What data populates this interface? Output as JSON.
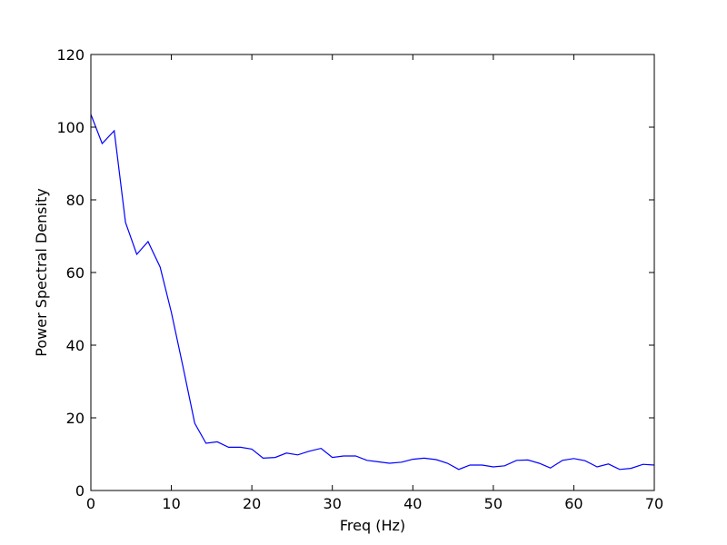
{
  "chart_data": {
    "type": "line",
    "xlabel": "Freq (Hz)",
    "ylabel": "Power Spectral Density",
    "xlim": [
      0,
      70
    ],
    "ylim": [
      0,
      120
    ],
    "xticks": [
      0,
      10,
      20,
      30,
      40,
      50,
      60,
      70
    ],
    "yticks": [
      0,
      20,
      40,
      60,
      80,
      100,
      120
    ],
    "grid": false,
    "series": [
      {
        "color": "#0000ff",
        "x": [
          0,
          1.4,
          2.9,
          4.3,
          5.7,
          7.1,
          8.6,
          10.0,
          11.4,
          12.9,
          14.3,
          15.7,
          17.1,
          18.6,
          20.0,
          21.4,
          22.9,
          24.3,
          25.7,
          27.1,
          28.6,
          30.0,
          31.4,
          32.9,
          34.3,
          35.7,
          37.1,
          38.6,
          40.0,
          41.4,
          42.9,
          44.3,
          45.7,
          47.1,
          48.6,
          50.0,
          51.4,
          52.9,
          54.3,
          55.7,
          57.1,
          58.6,
          60.0,
          61.4,
          62.9,
          64.3,
          65.7,
          67.1,
          68.6,
          70.0
        ],
        "y": [
          103.5,
          95.5,
          99.0,
          73.8,
          65.0,
          68.5,
          61.5,
          49.0,
          34.5,
          18.5,
          13.0,
          13.4,
          11.9,
          11.9,
          11.4,
          8.9,
          9.1,
          10.3,
          9.8,
          10.8,
          11.6,
          9.1,
          9.5,
          9.5,
          8.3,
          7.9,
          7.5,
          7.8,
          8.6,
          8.9,
          8.5,
          7.5,
          5.8,
          7.0,
          7.0,
          6.5,
          6.8,
          8.3,
          8.4,
          7.5,
          6.2,
          8.3,
          8.8,
          8.2,
          6.5,
          7.3,
          5.8,
          6.1,
          7.2,
          7.0
        ]
      }
    ]
  }
}
